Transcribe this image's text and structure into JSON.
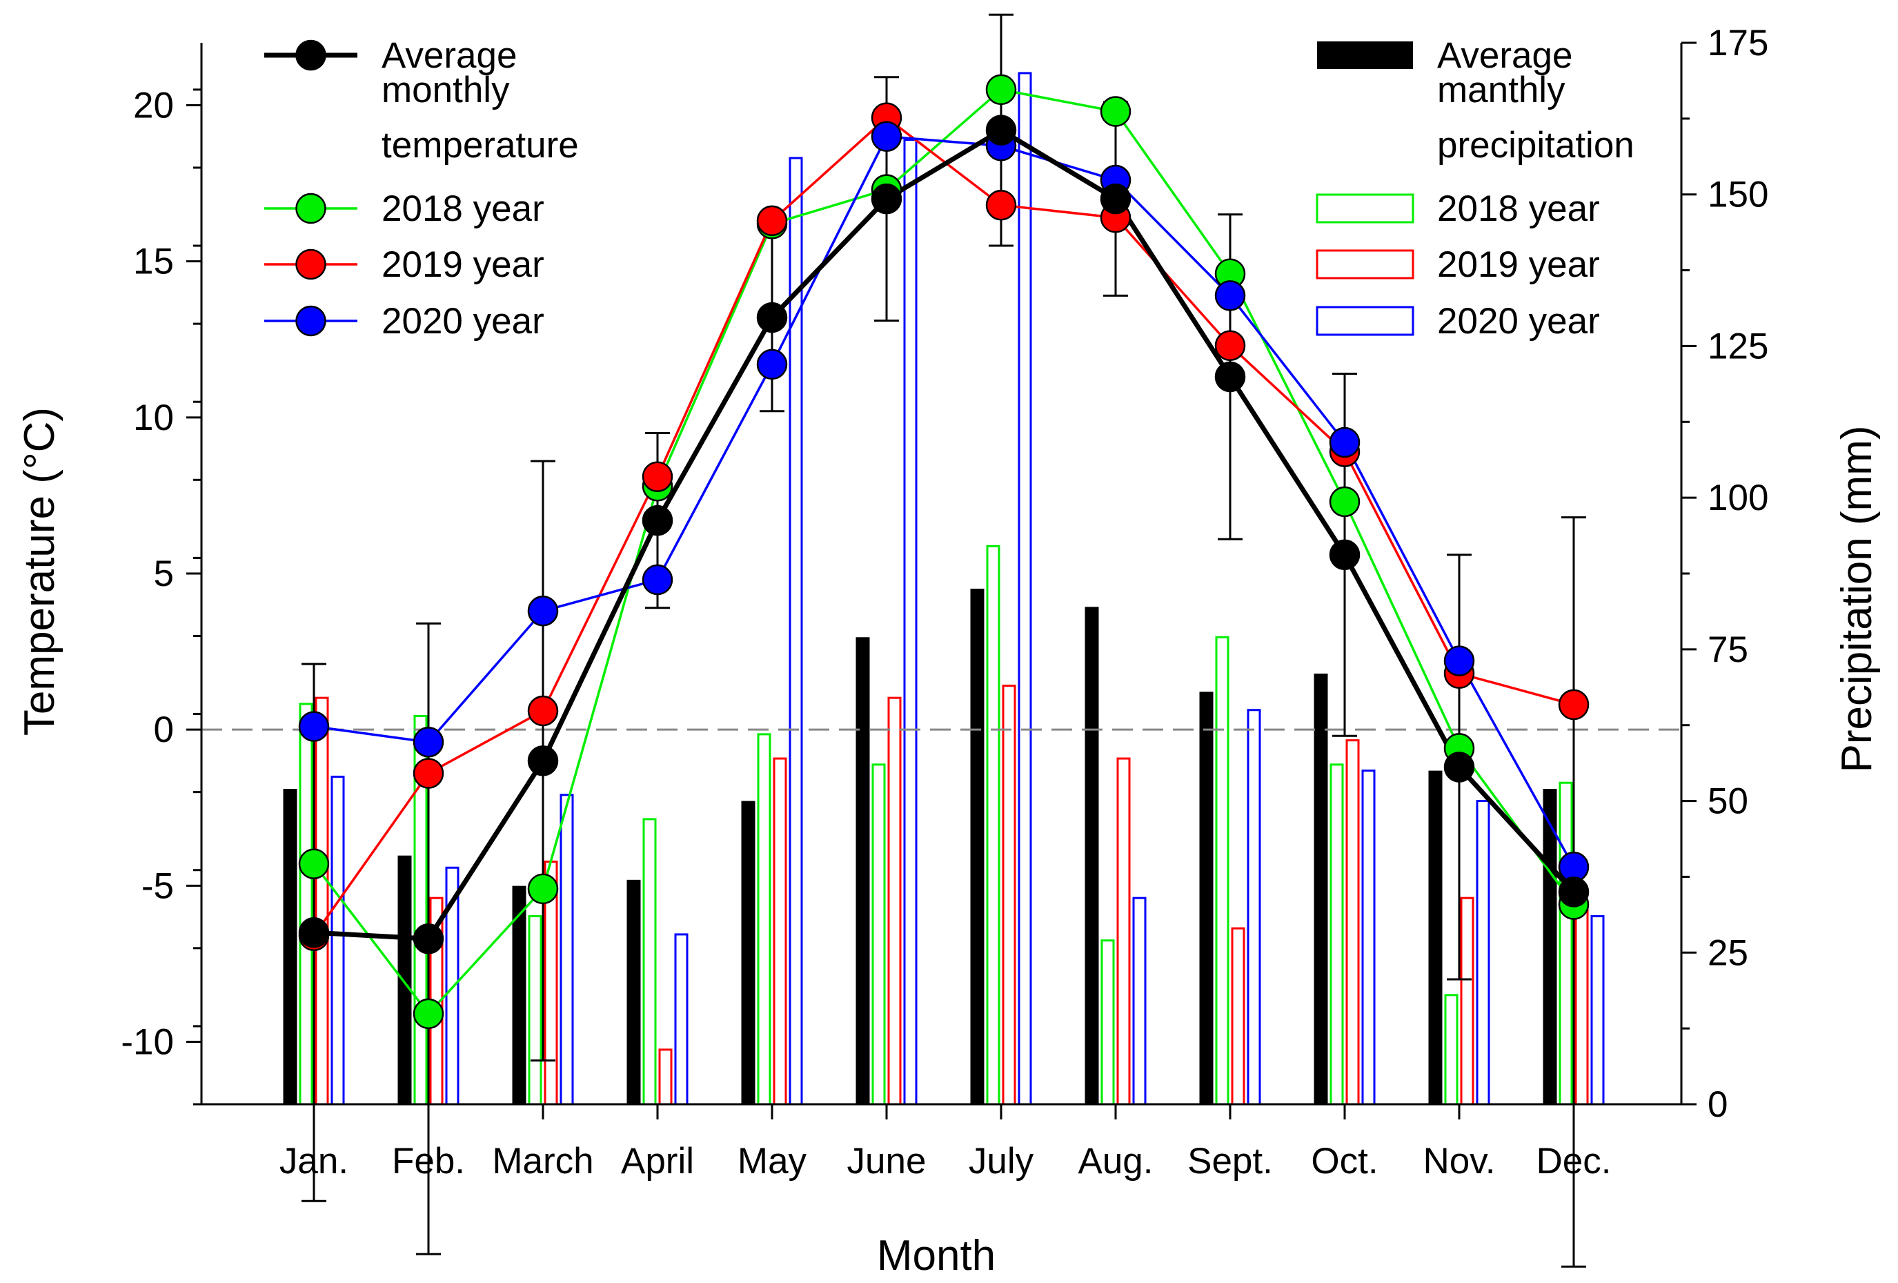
{
  "chart_data": {
    "type": "line+bar",
    "xlabel": "Month",
    "ylabel_left": "Temperature (°C)",
    "ylabel_right": "Precipitation (mm)",
    "categories": [
      "Jan.",
      "Feb.",
      "March",
      "April",
      "May",
      "June",
      "July",
      "Aug.",
      "Sept.",
      "Oct.",
      "Nov.",
      "Dec."
    ],
    "ylim_left": [
      -12,
      22
    ],
    "ylim_right": [
      0,
      175
    ],
    "yticks_left": [
      -10,
      -5,
      0,
      5,
      10,
      15,
      20
    ],
    "yticks_left_labels": [
      "-10",
      "-5",
      "0",
      "5",
      "10",
      "15",
      "20"
    ],
    "yticks_right": [
      0,
      25,
      50,
      75,
      100,
      125,
      150,
      175
    ],
    "yticks_right_labels": [
      "0",
      "25",
      "50",
      "75",
      "100",
      "125",
      "150",
      "175"
    ],
    "reference_line": 0,
    "temperature_series": [
      {
        "name": "Average monthly temperature",
        "legend_lines": [
          "Average",
          "monthly",
          "temperature"
        ],
        "color": "#000000",
        "values": [
          -6.5,
          -6.7,
          -1.0,
          6.7,
          13.2,
          17.0,
          19.2,
          17.0,
          11.3,
          5.6,
          -1.2,
          -5.2
        ],
        "error": [
          8.6,
          10.1,
          9.6,
          2.8,
          3.0,
          3.9,
          3.7,
          3.1,
          5.2,
          5.8,
          6.8,
          12.0
        ]
      },
      {
        "name": "2018 year",
        "color": "#00ee00",
        "values": [
          -4.3,
          -9.1,
          -5.1,
          7.8,
          16.2,
          17.3,
          20.5,
          19.8,
          14.6,
          7.3,
          -0.6,
          -5.6
        ]
      },
      {
        "name": "2019 year",
        "color": "#ff0000",
        "values": [
          -6.6,
          -1.4,
          0.6,
          8.1,
          16.3,
          19.6,
          16.8,
          16.4,
          12.3,
          8.9,
          1.8,
          0.8
        ]
      },
      {
        "name": "2020 year",
        "color": "#0000ff",
        "values": [
          0.1,
          -0.4,
          3.8,
          4.8,
          11.7,
          19.0,
          18.7,
          17.6,
          13.9,
          9.2,
          2.2,
          -4.4
        ]
      }
    ],
    "precipitation_series": [
      {
        "name": "Average manthly precipitation",
        "legend_lines": [
          "Average",
          "manthly",
          "precipitation"
        ],
        "color": "#000000",
        "filled": true,
        "values": [
          52,
          41,
          36,
          37,
          50,
          77,
          85,
          82,
          68,
          71,
          55,
          52
        ]
      },
      {
        "name": "2018 year",
        "color": "#00ee00",
        "filled": false,
        "values": [
          66,
          64,
          31,
          47,
          61,
          56,
          92,
          27,
          77,
          56,
          18,
          53
        ]
      },
      {
        "name": "2019 year",
        "color": "#ff0000",
        "filled": false,
        "values": [
          67,
          34,
          40,
          9,
          57,
          67,
          69,
          57,
          29,
          60,
          34,
          33
        ]
      },
      {
        "name": "2020 year",
        "color": "#0000ff",
        "filled": false,
        "values": [
          54,
          39,
          51,
          28,
          156,
          159,
          170,
          34,
          65,
          55,
          50,
          31
        ]
      }
    ],
    "legend_left_position": "top-left",
    "legend_right_position": "top-right",
    "grid": false
  }
}
